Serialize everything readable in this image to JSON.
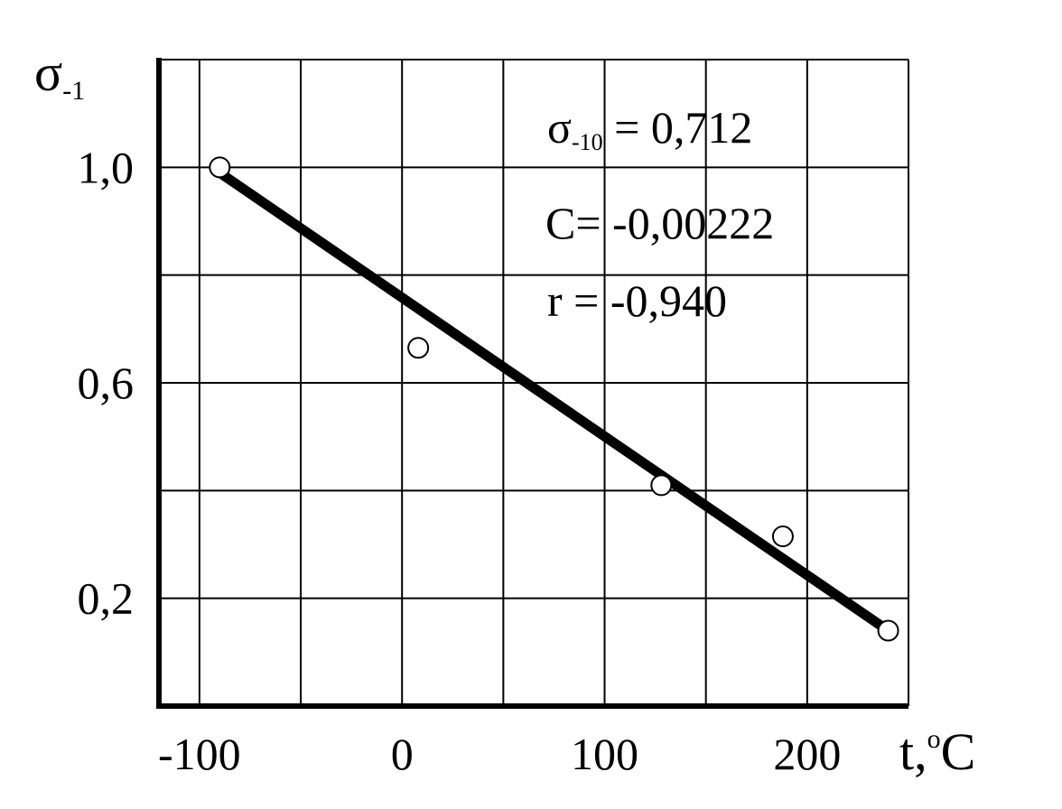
{
  "chart_data": {
    "type": "scatter",
    "x_label": "t,",
    "x_label_degree": "o",
    "x_label_unit": "C",
    "y_label": "σ",
    "y_label_sub": "-1",
    "xlim": [
      -120,
      250
    ],
    "ylim": [
      0.0,
      1.2
    ],
    "x_grid": [
      -100,
      -50,
      0,
      50,
      100,
      150,
      200,
      250
    ],
    "y_grid": [
      0.2,
      0.4,
      0.6,
      0.8,
      1.0,
      1.2
    ],
    "x_ticks": [
      {
        "value": -100,
        "label": "-100"
      },
      {
        "value": 0,
        "label": "0"
      },
      {
        "value": 100,
        "label": "100"
      },
      {
        "value": 200,
        "label": "200"
      }
    ],
    "y_ticks": [
      {
        "value": 0.2,
        "label": "0,2"
      },
      {
        "value": 0.6,
        "label": "0,6"
      },
      {
        "value": 1.0,
        "label": "1,0"
      }
    ],
    "grid": true,
    "series": [
      {
        "type": "scatter",
        "marker": "open-circle",
        "points": [
          {
            "x": -90,
            "y": 1.0
          },
          {
            "x": 8,
            "y": 0.665
          },
          {
            "x": 128,
            "y": 0.41
          },
          {
            "x": 188,
            "y": 0.315
          },
          {
            "x": 240,
            "y": 0.14
          }
        ]
      },
      {
        "type": "line",
        "points": [
          {
            "x": -90,
            "y": 0.99
          },
          {
            "x": 240,
            "y": 0.14
          }
        ]
      }
    ],
    "annotations": [
      {
        "main": "σ",
        "sub": "-10",
        "rest": " = 0,712"
      },
      {
        "text": "C= -0,00222"
      },
      {
        "text": "r = -0,940"
      }
    ]
  }
}
